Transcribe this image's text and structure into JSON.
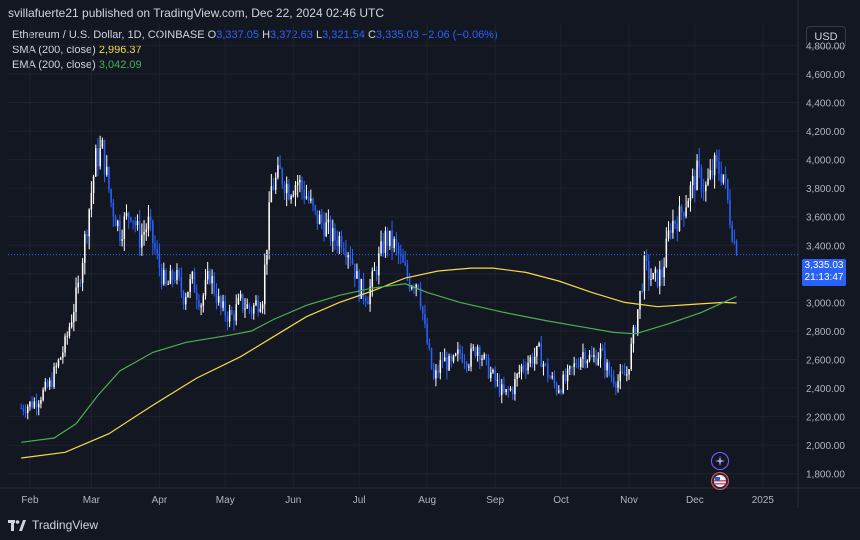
{
  "header": {
    "publisher": "svillafuerte21 published on TradingView.com, Dec 22, 2024 02:46 UTC"
  },
  "legend": {
    "symbol": "Ethereum / U.S. Dollar, 1D, COINBASE",
    "open_label": "O",
    "open": "3,337.05",
    "high_label": "H",
    "high": "3,372.63",
    "low_label": "L",
    "low": "3,321.54",
    "close_label": "C",
    "close": "3,335.03",
    "change": "−2.06 (−0.06%)",
    "sma_label": "SMA (200, close)",
    "sma_value": "2,996.37",
    "ema_label": "EMA (200, close)",
    "ema_value": "3,042.09"
  },
  "currency": "USD",
  "price_tag": {
    "price": "3,335.03",
    "countdown": "21:13:47"
  },
  "footer": {
    "brand": "TradingView"
  },
  "colors": {
    "background": "#131722",
    "up": "#ffffff",
    "down": "#2962ff",
    "sma": "#f7d94c",
    "ema": "#4caf50",
    "grid": "#1e222d",
    "text": "#b2b5be"
  },
  "chart_data": {
    "type": "candlestick",
    "title": "Ethereum / U.S. Dollar, 1D, COINBASE",
    "ylim": [
      1700,
      4950
    ],
    "y_ticks": [
      1800,
      2000,
      2200,
      2400,
      2600,
      2800,
      3000,
      3200,
      3400,
      3600,
      3800,
      4000,
      4200,
      4400,
      4600,
      4800
    ],
    "y_tick_labels": [
      "1,800.00",
      "2,000.00",
      "2,200.00",
      "2,400.00",
      "2,600.00",
      "2,800.00",
      "3,000.00",
      "3,200.00",
      "3,400.00",
      "3,600.00",
      "3,800.00",
      "4,000.00",
      "4,200.00",
      "4,400.00",
      "4,600.00",
      "4,800.00"
    ],
    "x_labels": [
      "Feb",
      "Mar",
      "Apr",
      "May",
      "Jun",
      "Jul",
      "Aug",
      "Sep",
      "Oct",
      "Nov",
      "Dec",
      "2025"
    ],
    "x_label_days": [
      4,
      32,
      63,
      93,
      124,
      154,
      185,
      216,
      246,
      277,
      307,
      338
    ],
    "close_path": [
      [
        0,
        2260
      ],
      [
        6,
        2300
      ],
      [
        13,
        2420
      ],
      [
        20,
        2700
      ],
      [
        26,
        3100
      ],
      [
        30,
        3550
      ],
      [
        34,
        4000
      ],
      [
        37,
        4070
      ],
      [
        41,
        3700
      ],
      [
        45,
        3500
      ],
      [
        50,
        3650
      ],
      [
        54,
        3450
      ],
      [
        58,
        3550
      ],
      [
        62,
        3300
      ],
      [
        66,
        3100
      ],
      [
        70,
        3200
      ],
      [
        74,
        3050
      ],
      [
        78,
        3150
      ],
      [
        82,
        3000
      ],
      [
        86,
        3200
      ],
      [
        91,
        2950
      ],
      [
        96,
        2900
      ],
      [
        100,
        3000
      ],
      [
        105,
        2950
      ],
      [
        110,
        3050
      ],
      [
        114,
        3800
      ],
      [
        118,
        3900
      ],
      [
        122,
        3800
      ],
      [
        126,
        3850
      ],
      [
        130,
        3750
      ],
      [
        134,
        3600
      ],
      [
        138,
        3550
      ],
      [
        142,
        3450
      ],
      [
        146,
        3450
      ],
      [
        150,
        3350
      ],
      [
        154,
        3100
      ],
      [
        158,
        3050
      ],
      [
        162,
        3250
      ],
      [
        166,
        3450
      ],
      [
        170,
        3400
      ],
      [
        174,
        3250
      ],
      [
        177,
        3150
      ],
      [
        181,
        3150
      ],
      [
        184,
        2800
      ],
      [
        188,
        2450
      ],
      [
        192,
        2600
      ],
      [
        196,
        2550
      ],
      [
        200,
        2650
      ],
      [
        204,
        2600
      ],
      [
        208,
        2700
      ],
      [
        212,
        2550
      ],
      [
        216,
        2450
      ],
      [
        220,
        2350
      ],
      [
        224,
        2400
      ],
      [
        228,
        2550
      ],
      [
        232,
        2600
      ],
      [
        236,
        2650
      ],
      [
        240,
        2500
      ],
      [
        244,
        2400
      ],
      [
        248,
        2450
      ],
      [
        252,
        2550
      ],
      [
        256,
        2650
      ],
      [
        260,
        2600
      ],
      [
        264,
        2650
      ],
      [
        268,
        2500
      ],
      [
        272,
        2450
      ],
      [
        276,
        2500
      ],
      [
        280,
        2850
      ],
      [
        284,
        3250
      ],
      [
        288,
        3150
      ],
      [
        292,
        3200
      ],
      [
        296,
        3550
      ],
      [
        300,
        3600
      ],
      [
        304,
        3750
      ],
      [
        308,
        3900
      ],
      [
        312,
        3800
      ],
      [
        316,
        3950
      ],
      [
        320,
        3900
      ],
      [
        323,
        3600
      ],
      [
        326,
        3335
      ]
    ],
    "sma_200": {
      "name": "SMA (200, close)",
      "last": 2996.37,
      "points": [
        [
          0,
          1910
        ],
        [
          20,
          1950
        ],
        [
          40,
          2080
        ],
        [
          60,
          2280
        ],
        [
          80,
          2470
        ],
        [
          100,
          2620
        ],
        [
          115,
          2760
        ],
        [
          130,
          2900
        ],
        [
          145,
          3000
        ],
        [
          160,
          3080
        ],
        [
          175,
          3170
        ],
        [
          190,
          3220
        ],
        [
          205,
          3240
        ],
        [
          215,
          3240
        ],
        [
          230,
          3210
        ],
        [
          245,
          3150
        ],
        [
          260,
          3070
        ],
        [
          275,
          3000
        ],
        [
          290,
          2970
        ],
        [
          305,
          2985
        ],
        [
          320,
          3000
        ],
        [
          326,
          2996
        ]
      ]
    },
    "ema_200": {
      "name": "EMA (200, close)",
      "last": 3042.09,
      "points": [
        [
          0,
          2020
        ],
        [
          15,
          2050
        ],
        [
          25,
          2150
        ],
        [
          35,
          2350
        ],
        [
          45,
          2520
        ],
        [
          60,
          2650
        ],
        [
          75,
          2720
        ],
        [
          95,
          2770
        ],
        [
          105,
          2800
        ],
        [
          115,
          2880
        ],
        [
          130,
          2980
        ],
        [
          145,
          3050
        ],
        [
          160,
          3100
        ],
        [
          175,
          3130
        ],
        [
          185,
          3070
        ],
        [
          200,
          3000
        ],
        [
          220,
          2930
        ],
        [
          240,
          2870
        ],
        [
          255,
          2830
        ],
        [
          270,
          2790
        ],
        [
          280,
          2780
        ],
        [
          295,
          2850
        ],
        [
          310,
          2930
        ],
        [
          320,
          3000
        ],
        [
          326,
          3042
        ]
      ]
    },
    "last_price": 3335.03
  }
}
